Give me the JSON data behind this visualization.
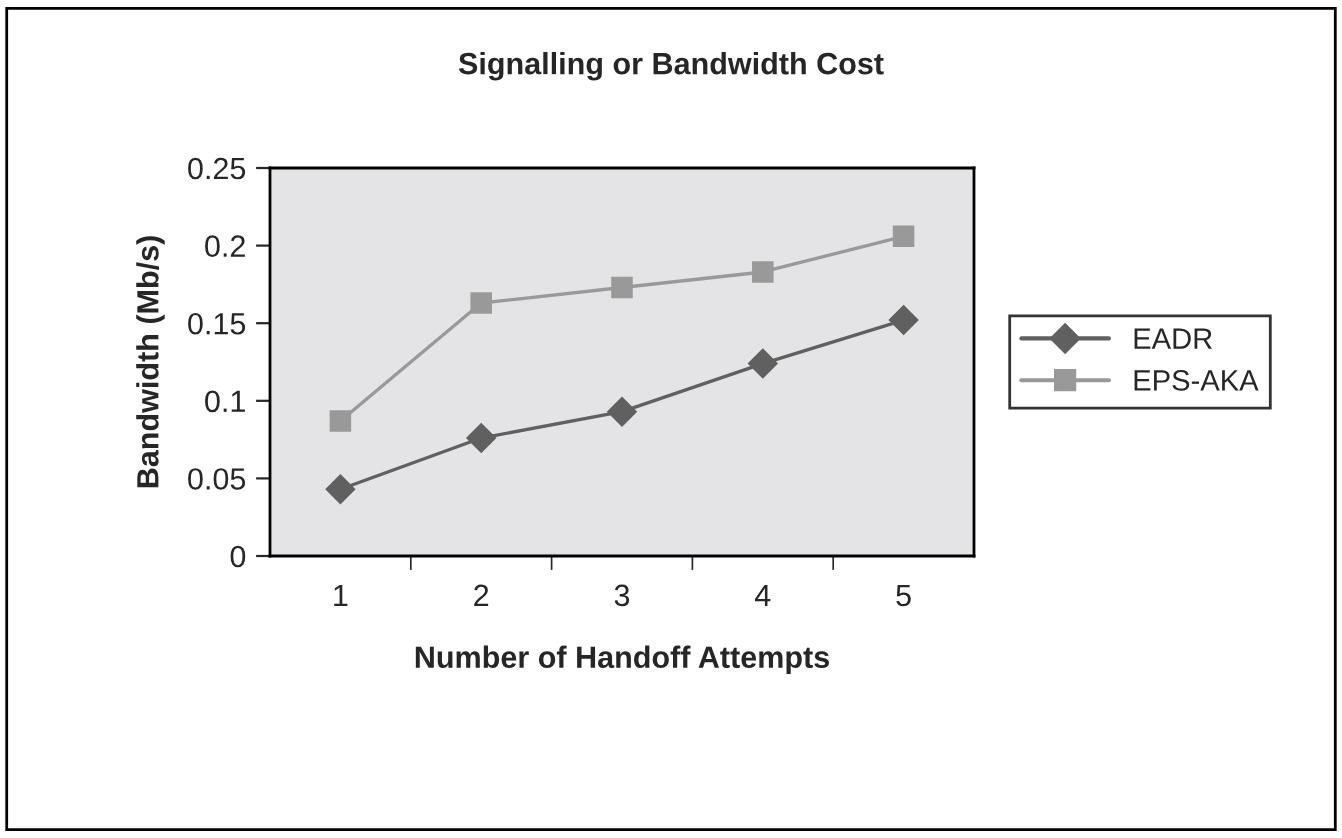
{
  "chart_data": {
    "type": "line",
    "title": "Signalling or Bandwidth Cost",
    "xlabel": "Number of Handoff Attempts",
    "ylabel": "Bandwidth (Mb/s)",
    "categories": [
      "1",
      "2",
      "3",
      "4",
      "5"
    ],
    "series": [
      {
        "name": "EADR",
        "color": "#606060",
        "marker": "diamond",
        "values": [
          0.043,
          0.076,
          0.093,
          0.124,
          0.152
        ]
      },
      {
        "name": "EPS-AKA",
        "color": "#999999",
        "marker": "square",
        "values": [
          0.087,
          0.163,
          0.173,
          0.183,
          0.206
        ]
      }
    ],
    "ylim": [
      0,
      0.25
    ],
    "yticks": [
      0,
      0.05,
      0.1,
      0.15,
      0.2,
      0.25
    ],
    "grid": false,
    "legend": "right",
    "line_style": "solid"
  }
}
